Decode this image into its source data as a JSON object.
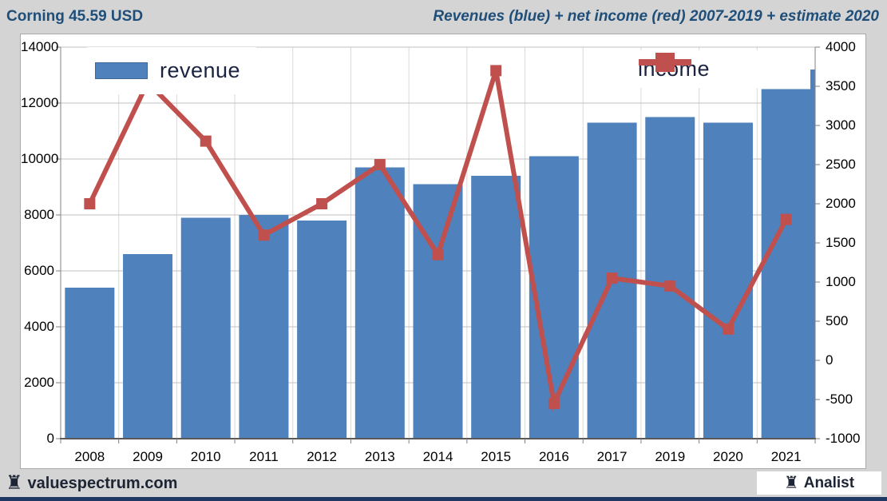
{
  "header": {
    "left_title": "Corning 45.59 USD",
    "right_title": "Revenues (blue) + net income (red) 2007-2019 + estimate 2020"
  },
  "footer": {
    "rook_icon": "♜",
    "site": "valuespectrum.com",
    "analist_label": "Analist"
  },
  "colors": {
    "bar_blue": "#4f81bd",
    "line_red": "#c0504d",
    "header_text": "#1f4e79",
    "page_bg": "#d4d4d4",
    "navy_strip": "#1f3864",
    "gridline": "#c0c0c0",
    "vertical_gridline": "#d9d9d9",
    "axis_line": "#808080",
    "bottom_axis_line": "#595959"
  },
  "chart_data": {
    "type": "bar",
    "subtype": "combo-bar-line",
    "title": "Revenues (blue) + net income (red) 2007-2019 + estimate 2020",
    "xlabel": "",
    "ylabel": "",
    "grid": true,
    "categories": [
      "2008",
      "2009",
      "2010",
      "2011",
      "2012",
      "2013",
      "2014",
      "2015",
      "2016",
      "2017",
      "2019",
      "2020",
      "2021"
    ],
    "series": [
      {
        "name": "revenue",
        "type": "bar",
        "axis": "left",
        "color": "#4f81bd",
        "values": [
          5400,
          6600,
          7900,
          8000,
          7800,
          9700,
          9100,
          9400,
          10100,
          11300,
          11500,
          11300,
          12500
        ]
      },
      {
        "name": "income",
        "type": "line",
        "axis": "right",
        "color": "#c0504d",
        "marker": "square",
        "values": [
          2000,
          3550,
          2800,
          1600,
          2000,
          2500,
          1350,
          3700,
          -550,
          1050,
          950,
          400,
          1800
        ]
      }
    ],
    "partial_bar_right_edge": {
      "value": 13200,
      "color": "#4f81bd"
    },
    "left_axis": {
      "min": 0,
      "max": 14000,
      "step": 2000,
      "ticks": [
        0,
        2000,
        4000,
        6000,
        8000,
        10000,
        12000,
        14000
      ]
    },
    "right_axis": {
      "min": -1000,
      "max": 4000,
      "step": 500,
      "ticks": [
        -1000,
        -500,
        0,
        500,
        1000,
        1500,
        2000,
        2500,
        3000,
        3500,
        4000
      ]
    },
    "legend": [
      {
        "label": "revenue",
        "position": "top-left"
      },
      {
        "label": "income",
        "position": "top-right"
      }
    ]
  }
}
